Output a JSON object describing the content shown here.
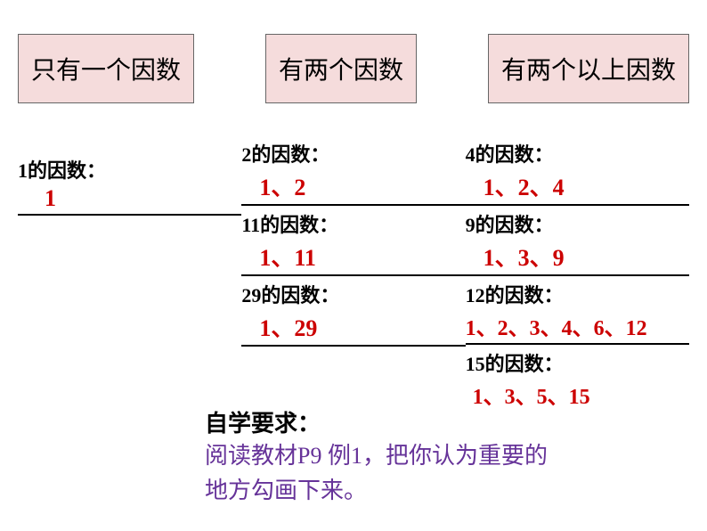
{
  "headers": {
    "h1": "只有一个因数",
    "h2": "有两个因数",
    "h3": "有两个以上因数"
  },
  "col1": {
    "item1_label": "1的因数：",
    "item1_value": "1"
  },
  "col2": {
    "item1_label": "2的因数：",
    "item1_value": "1、2",
    "item2_label": "11的因数：",
    "item2_value": "1、11",
    "item3_label": "29的因数：",
    "item3_value": "1、29"
  },
  "col3": {
    "item1_label": "4的因数：",
    "item1_value": "1、2、4",
    "item2_label": "9的因数：",
    "item2_value": "1、3、9",
    "item3_label": "12的因数：",
    "item3_value": "1、2、3、4、6、12",
    "item4_label": "15的因数：",
    "item4_value": "1、3、5、15"
  },
  "study": {
    "title": "自学要求：",
    "text": "阅读教材P9 例1，把你认为重要的地方勾画下来。"
  },
  "colors": {
    "header_bg": "#f5dcdc",
    "header_border": "#666666",
    "text_black": "#000000",
    "text_red": "#cc0000",
    "text_purple": "#663399",
    "background": "#ffffff"
  }
}
